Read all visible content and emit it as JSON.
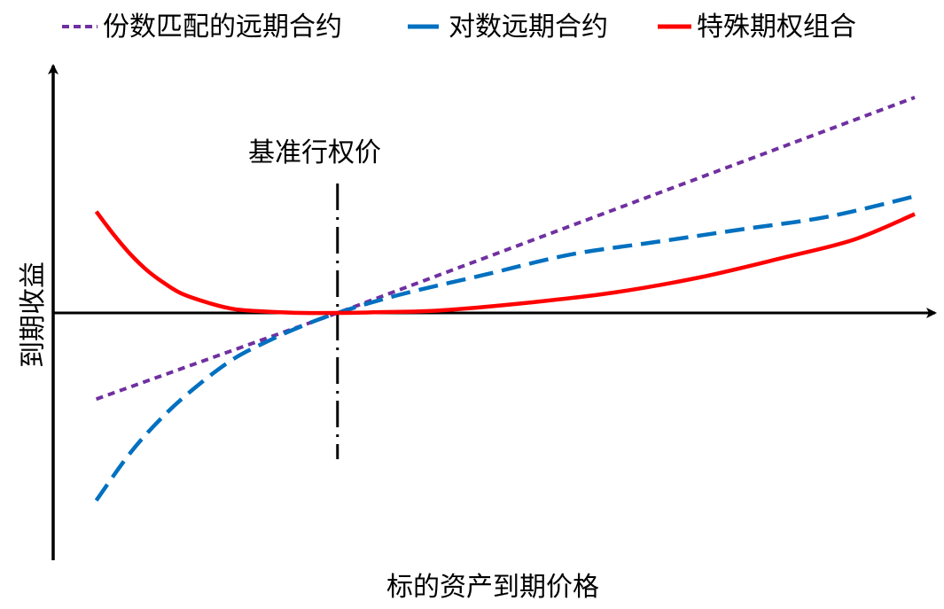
{
  "chart_data": {
    "type": "line",
    "xlabel": "标的资产到期价格",
    "ylabel": "到期收益",
    "strike_label": "基准行权价",
    "legend_position": "top",
    "x_range": [
      0,
      1
    ],
    "y_range": [
      -1,
      1
    ],
    "series": [
      {
        "name": "份数匹配的远期合约",
        "color": "#7030A0",
        "style": "dotted",
        "points": [
          [
            0.05,
            -0.34
          ],
          [
            0.33,
            0.0
          ],
          [
            1.0,
            0.85
          ]
        ]
      },
      {
        "name": "对数远期合约",
        "color": "#0070C0",
        "style": "dashed",
        "points": [
          [
            0.05,
            -0.74
          ],
          [
            0.09,
            -0.55
          ],
          [
            0.13,
            -0.4
          ],
          [
            0.17,
            -0.28
          ],
          [
            0.21,
            -0.18
          ],
          [
            0.25,
            -0.11
          ],
          [
            0.29,
            -0.05
          ],
          [
            0.33,
            0.0
          ],
          [
            0.4,
            0.07
          ],
          [
            0.5,
            0.15
          ],
          [
            0.6,
            0.23
          ],
          [
            0.7,
            0.28
          ],
          [
            0.8,
            0.33
          ],
          [
            0.9,
            0.38
          ],
          [
            1.0,
            0.46
          ]
        ]
      },
      {
        "name": "特殊期权组合",
        "color": "#FF0000",
        "style": "solid",
        "points": [
          [
            0.05,
            0.4
          ],
          [
            0.07,
            0.31
          ],
          [
            0.09,
            0.23
          ],
          [
            0.11,
            0.165
          ],
          [
            0.13,
            0.115
          ],
          [
            0.15,
            0.075
          ],
          [
            0.18,
            0.04
          ],
          [
            0.21,
            0.015
          ],
          [
            0.25,
            0.005
          ],
          [
            0.29,
            0.0
          ],
          [
            0.33,
            0.0
          ],
          [
            0.38,
            0.003
          ],
          [
            0.45,
            0.01
          ],
          [
            0.55,
            0.04
          ],
          [
            0.65,
            0.08
          ],
          [
            0.75,
            0.14
          ],
          [
            0.85,
            0.22
          ],
          [
            0.93,
            0.29
          ],
          [
            1.0,
            0.39
          ]
        ]
      }
    ],
    "strike_x": 0.33
  }
}
